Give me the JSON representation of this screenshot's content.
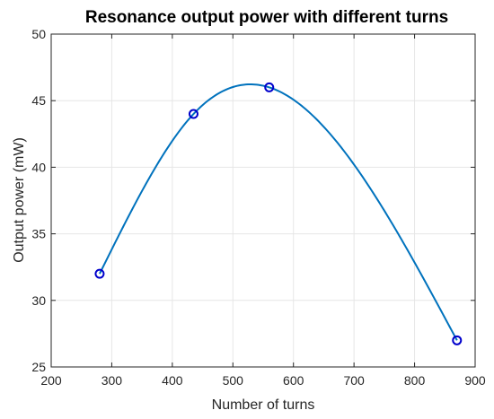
{
  "chart_data": {
    "type": "line",
    "title": "Resonance output power with different turns",
    "xlabel": "Number of turns",
    "ylabel": "Output power (mW)",
    "xlim": [
      200,
      900
    ],
    "ylim": [
      25,
      50
    ],
    "xticks": [
      200,
      300,
      400,
      500,
      600,
      700,
      800,
      900
    ],
    "yticks": [
      25,
      30,
      35,
      40,
      45,
      50
    ],
    "grid": true,
    "series": [
      {
        "color": "#0072bd",
        "marker": "circle",
        "marker_color": "#0000cc",
        "points": [
          {
            "x": 280,
            "y": 32
          },
          {
            "x": 435,
            "y": 44
          },
          {
            "x": 560,
            "y": 46
          },
          {
            "x": 870,
            "y": 27
          }
        ]
      }
    ]
  }
}
